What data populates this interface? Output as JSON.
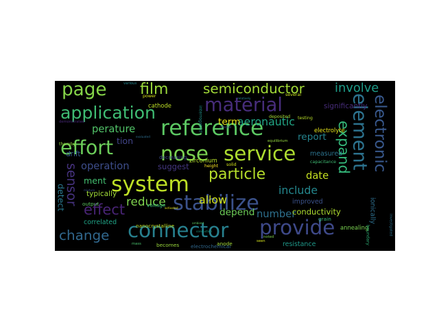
{
  "chart_data": {
    "type": "wordcloud",
    "background": "#000000",
    "words": [
      {
        "text": "reference",
        "weight": 30,
        "color": "#5cc863"
      },
      {
        "text": "system",
        "weight": 30,
        "color": "#bddf26"
      },
      {
        "text": "stabilize",
        "weight": 29,
        "color": "#3b528b"
      },
      {
        "text": "nose",
        "weight": 28,
        "color": "#7ad151"
      },
      {
        "text": "service",
        "weight": 28,
        "color": "#addc30"
      },
      {
        "text": "connector",
        "weight": 28,
        "color": "#27808e"
      },
      {
        "text": "provide",
        "weight": 28,
        "color": "#3e4989"
      },
      {
        "text": "effort",
        "weight": 27,
        "color": "#6ccd5a"
      },
      {
        "text": "material",
        "weight": 26,
        "color": "#472d7b"
      },
      {
        "text": "element",
        "weight": 26,
        "color": "#2c728e"
      },
      {
        "text": "page",
        "weight": 25,
        "color": "#86d549"
      },
      {
        "text": "application",
        "weight": 24,
        "color": "#3fbc73"
      },
      {
        "text": "electronic",
        "weight": 22,
        "color": "#38588c"
      },
      {
        "text": "particle",
        "weight": 21,
        "color": "#b5de2b"
      },
      {
        "text": "film",
        "weight": 21,
        "color": "#9bd93c"
      },
      {
        "text": "expand",
        "weight": 20,
        "color": "#34b679"
      },
      {
        "text": "effect",
        "weight": 20,
        "color": "#482475"
      },
      {
        "text": "semiconductor",
        "weight": 19,
        "color": "#a2da37"
      },
      {
        "text": "change",
        "weight": 19,
        "color": "#31688e"
      },
      {
        "text": "sensor",
        "weight": 18,
        "color": "#46327e"
      },
      {
        "text": "involve",
        "weight": 17,
        "color": "#1e9c89"
      },
      {
        "text": "reduce",
        "weight": 16,
        "color": "#7fd34e"
      },
      {
        "text": "aeronautic",
        "weight": 15,
        "color": "#21a585"
      },
      {
        "text": "allow",
        "weight": 15,
        "color": "#d0e11c"
      },
      {
        "text": "include",
        "weight": 15,
        "color": "#24878e"
      },
      {
        "text": "operation",
        "weight": 14,
        "color": "#3d4d8a"
      },
      {
        "text": "perature",
        "weight": 14,
        "color": "#52c569"
      },
      {
        "text": "date",
        "weight": 14,
        "color": "#c5e021"
      },
      {
        "text": "number",
        "weight": 14,
        "color": "#2d708e"
      },
      {
        "text": "depend",
        "weight": 13,
        "color": "#6ece58"
      },
      {
        "text": "report",
        "weight": 13,
        "color": "#25848e"
      },
      {
        "text": "term",
        "weight": 13,
        "color": "#e5e419"
      },
      {
        "text": "ment",
        "weight": 12,
        "color": "#44bf70"
      },
      {
        "text": "tion",
        "weight": 12,
        "color": "#414487"
      },
      {
        "text": "detect",
        "weight": 12,
        "color": "#2a788e"
      },
      {
        "text": "suggest",
        "weight": 11,
        "color": "#453882"
      },
      {
        "text": "conductivity",
        "weight": 11,
        "color": "#addc30"
      },
      {
        "text": "significantly",
        "weight": 10,
        "color": "#472c7a"
      },
      {
        "text": "typically",
        "weight": 10,
        "color": "#a0da39"
      },
      {
        "text": "drift",
        "weight": 10,
        "color": "#365c8d"
      },
      {
        "text": "correlated",
        "weight": 9,
        "color": "#20a386"
      },
      {
        "text": "ionically",
        "weight": 9,
        "color": "#2e6f8e"
      },
      {
        "text": "improved",
        "weight": 9,
        "color": "#3b528b"
      },
      {
        "text": "resistance",
        "weight": 9,
        "color": "#1f998a"
      },
      {
        "text": "measured",
        "weight": 9,
        "color": "#2c738e"
      },
      {
        "text": "annealing",
        "weight": 8,
        "color": "#7ad151"
      },
      {
        "text": "electrolyte",
        "weight": 8,
        "color": "#e5e419"
      },
      {
        "text": "cathode",
        "weight": 8,
        "color": "#bddf26"
      },
      {
        "text": "zirconium",
        "weight": 8,
        "color": "#b5de2b"
      },
      {
        "text": "decreasing",
        "weight": 7,
        "color": "#3e4a89"
      },
      {
        "text": "becomes",
        "weight": 7,
        "color": "#9bd93c"
      },
      {
        "text": "electrochemical",
        "weight": 7,
        "color": "#31688e"
      },
      {
        "text": "nanocrystalline",
        "weight": 7,
        "color": "#c2df23"
      },
      {
        "text": "voltage",
        "weight": 7,
        "color": "#35b779"
      },
      {
        "text": "output",
        "weight": 7,
        "color": "#5ec962"
      },
      {
        "text": "anode",
        "weight": 7,
        "color": "#a5db36"
      },
      {
        "text": "grain",
        "weight": 7,
        "color": "#37b878"
      },
      {
        "text": "boundary",
        "weight": 6,
        "color": "#31b57b"
      },
      {
        "text": "capacitance",
        "weight": 6,
        "color": "#3fbc73"
      },
      {
        "text": "solid",
        "weight": 6,
        "color": "#d2e21b"
      },
      {
        "text": "height",
        "weight": 6,
        "color": "#fde725"
      },
      {
        "text": "power",
        "weight": 6,
        "color": "#d8e219"
      },
      {
        "text": "thereby",
        "weight": 6,
        "color": "#95d840"
      },
      {
        "text": "interrogated",
        "weight": 6,
        "color": "#20928c"
      },
      {
        "text": "deposited",
        "weight": 6,
        "color": "#a8db34"
      },
      {
        "text": "testing",
        "weight": 6,
        "color": "#b8de29"
      },
      {
        "text": "several",
        "weight": 6,
        "color": "#c8e020"
      },
      {
        "text": "equilibrium",
        "weight": 5,
        "color": "#95d840"
      },
      {
        "text": "investigated",
        "weight": 5,
        "color": "#2d718e"
      },
      {
        "text": "noted",
        "weight": 5,
        "color": "#7fd34e"
      },
      {
        "text": "mass",
        "weight": 5,
        "color": "#4ac16d"
      },
      {
        "text": "demonstrated",
        "weight": 5,
        "color": "#482878"
      },
      {
        "text": "various",
        "weight": 5,
        "color": "#24868e"
      },
      {
        "text": "seen",
        "weight": 5,
        "color": "#d5e21a"
      },
      {
        "text": "evaluated",
        "weight": 4,
        "color": "#2e6e8e"
      },
      {
        "text": "activated",
        "weight": 4,
        "color": "#e2e418"
      },
      {
        "text": "mixture",
        "weight": 4,
        "color": "#3b528b"
      },
      {
        "text": "ambient",
        "weight": 4,
        "color": "#5ec962"
      },
      {
        "text": "conduction",
        "weight": 4,
        "color": "#1f9e89"
      },
      {
        "text": "relatively",
        "weight": 4,
        "color": "#26828e"
      },
      {
        "text": "affected",
        "weight": 4,
        "color": "#3f4889"
      }
    ]
  }
}
